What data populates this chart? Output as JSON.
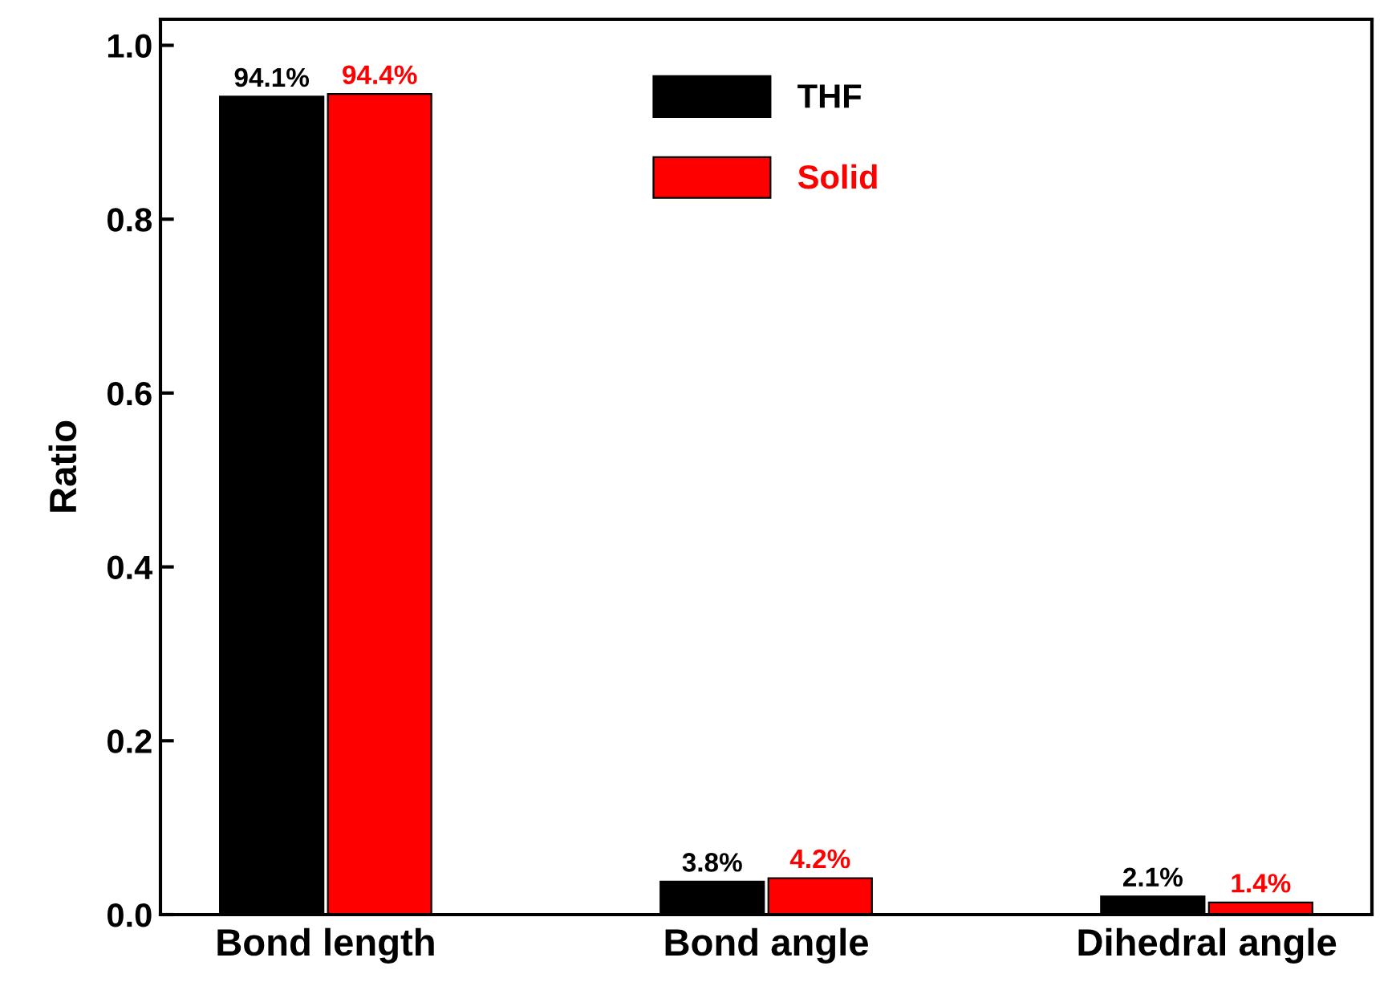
{
  "chart_data": {
    "type": "bar",
    "ylabel": "Ratio",
    "categories": [
      "Bond length",
      "Bond angle",
      "Dihedral angle"
    ],
    "series": [
      {
        "name": "THF",
        "color": "#000000",
        "values": [
          0.941,
          0.038,
          0.021
        ],
        "value_labels": [
          "94.1%",
          "3.8%",
          "2.1%"
        ]
      },
      {
        "name": "Solid",
        "color": "#ff0000",
        "values": [
          0.944,
          0.042,
          0.014
        ],
        "value_labels": [
          "94.4%",
          "4.2%",
          "1.4%"
        ]
      }
    ],
    "ylim": [
      0,
      1.03
    ],
    "yticks": [
      {
        "value": 0,
        "label": "0.0"
      },
      {
        "value": 0.2,
        "label": "0.2"
      },
      {
        "value": 0.4,
        "label": "0.4"
      },
      {
        "value": 0.6,
        "label": "0.6"
      },
      {
        "value": 0.8,
        "label": "0.8"
      },
      {
        "value": 1.0,
        "label": "1.0"
      }
    ],
    "grid": false,
    "legend": "top"
  }
}
